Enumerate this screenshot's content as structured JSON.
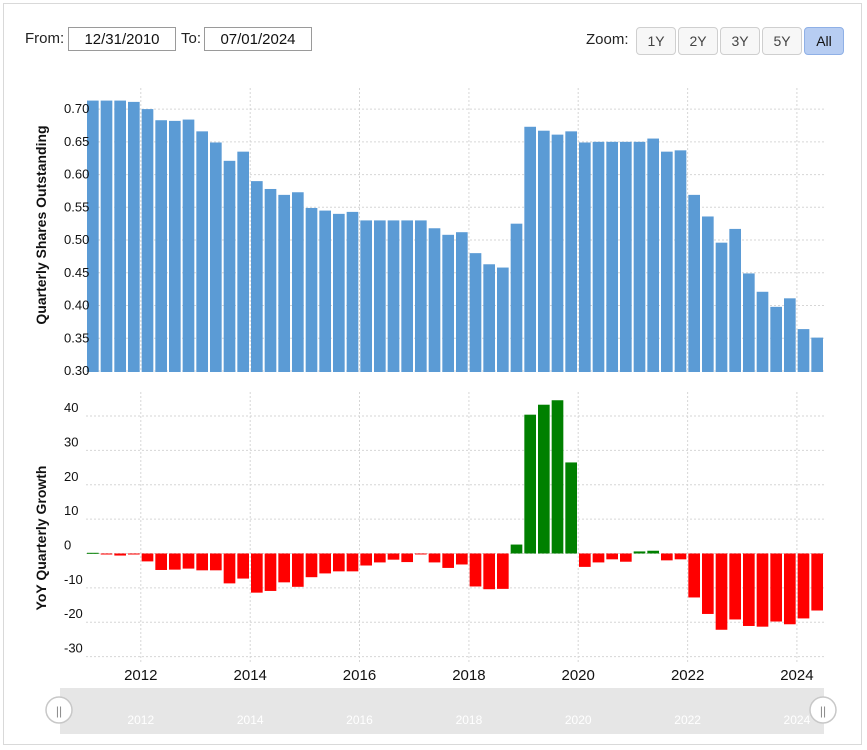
{
  "controls": {
    "from_label": "From:",
    "from_value": "12/31/2010",
    "to_label": "To:",
    "to_value": "07/01/2024",
    "zoom_label": "Zoom:",
    "zoom_buttons": [
      "1Y",
      "2Y",
      "3Y",
      "5Y",
      "All"
    ],
    "zoom_active": "All"
  },
  "navigator": {
    "handle_glyph": "||",
    "year_labels": [
      "2012",
      "2014",
      "2016",
      "2018",
      "2020",
      "2022",
      "2024"
    ]
  },
  "colors": {
    "shares_bar": "#5b9bd5",
    "growth_positive": "#008000",
    "growth_negative": "#ff0000",
    "grid": "#d6d6d6",
    "active_button": "#b7cdf2"
  },
  "chart_data": [
    {
      "type": "bar",
      "ylabel": "Quarterly Shares Outstanding",
      "ylim": [
        0.3,
        0.72
      ],
      "yticks": [
        "0.30",
        "0.35",
        "0.40",
        "0.45",
        "0.50",
        "0.55",
        "0.60",
        "0.65",
        "0.70"
      ],
      "grid": true,
      "xticks": [
        "2012",
        "2014",
        "2016",
        "2018",
        "2020",
        "2022",
        "2024"
      ],
      "x": [
        "2011-03-31",
        "2011-06-30",
        "2011-09-30",
        "2011-12-31",
        "2012-03-31",
        "2012-06-30",
        "2012-09-30",
        "2012-12-31",
        "2013-03-31",
        "2013-06-30",
        "2013-09-30",
        "2013-12-31",
        "2014-03-31",
        "2014-06-30",
        "2014-09-30",
        "2014-12-31",
        "2015-03-31",
        "2015-06-30",
        "2015-09-30",
        "2015-12-31",
        "2016-03-31",
        "2016-06-30",
        "2016-09-30",
        "2016-12-31",
        "2017-03-31",
        "2017-06-30",
        "2017-09-30",
        "2017-12-31",
        "2018-03-31",
        "2018-06-30",
        "2018-09-30",
        "2018-12-31",
        "2019-03-31",
        "2019-06-30",
        "2019-09-30",
        "2019-12-31",
        "2020-03-31",
        "2020-06-30",
        "2020-09-30",
        "2020-12-31",
        "2021-03-31",
        "2021-06-30",
        "2021-09-30",
        "2021-12-31",
        "2022-03-31",
        "2022-06-30",
        "2022-09-30",
        "2022-12-31",
        "2023-03-31",
        "2023-06-30",
        "2023-09-30",
        "2023-12-31",
        "2024-03-31",
        "2024-06-30"
      ],
      "values": [
        0.713,
        0.713,
        0.713,
        0.711,
        0.7,
        0.683,
        0.682,
        0.684,
        0.666,
        0.649,
        0.621,
        0.635,
        0.59,
        0.578,
        0.569,
        0.573,
        0.549,
        0.545,
        0.54,
        0.543,
        0.53,
        0.53,
        0.53,
        0.53,
        0.53,
        0.518,
        0.508,
        0.512,
        0.48,
        0.463,
        0.458,
        0.525,
        0.673,
        0.667,
        0.661,
        0.666,
        0.649,
        0.65,
        0.65,
        0.65,
        0.65,
        0.655,
        0.635,
        0.637,
        0.569,
        0.536,
        0.496,
        0.517,
        0.449,
        0.421,
        0.398,
        0.411,
        0.364,
        0.351
      ]
    },
    {
      "type": "bar",
      "ylabel": "YoY Quarterly Growth",
      "ylim": [
        -31,
        47
      ],
      "yticks": [
        "-30",
        "-20",
        "-10",
        "0",
        "10",
        "20",
        "30",
        "40"
      ],
      "grid": true,
      "xticks": [
        "2012",
        "2014",
        "2016",
        "2018",
        "2020",
        "2022",
        "2024"
      ],
      "x": [
        "2011-03-31",
        "2011-06-30",
        "2011-09-30",
        "2011-12-31",
        "2012-03-31",
        "2012-06-30",
        "2012-09-30",
        "2012-12-31",
        "2013-03-31",
        "2013-06-30",
        "2013-09-30",
        "2013-12-31",
        "2014-03-31",
        "2014-06-30",
        "2014-09-30",
        "2014-12-31",
        "2015-03-31",
        "2015-06-30",
        "2015-09-30",
        "2015-12-31",
        "2016-03-31",
        "2016-06-30",
        "2016-09-30",
        "2016-12-31",
        "2017-03-31",
        "2017-06-30",
        "2017-09-30",
        "2017-12-31",
        "2018-03-31",
        "2018-06-30",
        "2018-09-30",
        "2018-12-31",
        "2019-03-31",
        "2019-06-30",
        "2019-09-30",
        "2019-12-31",
        "2020-03-31",
        "2020-06-30",
        "2020-09-30",
        "2020-12-31",
        "2021-03-31",
        "2021-06-30",
        "2021-09-30",
        "2021-12-31",
        "2022-03-31",
        "2022-06-30",
        "2022-09-30",
        "2022-12-31",
        "2023-03-31",
        "2023-06-30",
        "2023-09-30",
        "2023-12-31",
        "2024-03-31",
        "2024-06-30"
      ],
      "values": [
        0.2,
        -0.3,
        -0.6,
        -0.3,
        -2.3,
        -4.8,
        -4.7,
        -4.4,
        -4.9,
        -4.9,
        -8.7,
        -7.3,
        -11.4,
        -10.9,
        -8.4,
        -9.7,
        -6.9,
        -5.8,
        -5.2,
        -5.2,
        -3.5,
        -2.6,
        -1.8,
        -2.5,
        -0.2,
        -2.6,
        -4.2,
        -3.2,
        -9.6,
        -10.4,
        -10.3,
        2.6,
        40.4,
        43.3,
        44.6,
        26.5,
        -3.9,
        -2.6,
        -1.7,
        -2.4,
        0.6,
        0.8,
        -2.0,
        -1.7,
        -12.8,
        -17.6,
        -22.2,
        -19.2,
        -21.1,
        -21.3,
        -19.8,
        -20.6,
        -18.9,
        -16.6
      ]
    }
  ]
}
